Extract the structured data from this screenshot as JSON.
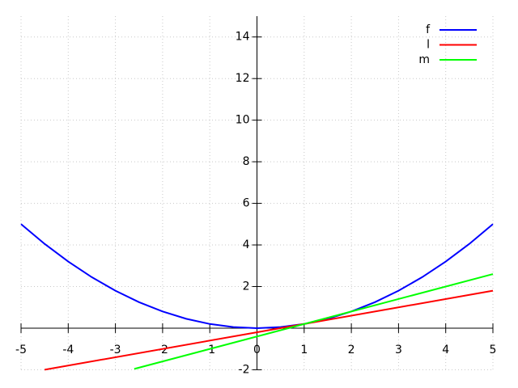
{
  "chart_data": {
    "type": "line",
    "xlim": [
      -5,
      5
    ],
    "ylim": [
      -2,
      15
    ],
    "xticks": [
      -5,
      -4,
      -3,
      -2,
      -1,
      0,
      1,
      2,
      3,
      4,
      5
    ],
    "yticks": [
      -2,
      2,
      4,
      6,
      8,
      10,
      12,
      14
    ],
    "grid": true,
    "legend": "top-right",
    "series": [
      {
        "name": "f",
        "color": "#0000ff",
        "x": [
          -5,
          -4.5,
          -4,
          -3.5,
          -3,
          -2.5,
          -2,
          -1.5,
          -1,
          -0.5,
          0,
          0.5,
          1,
          1.5,
          2,
          2.5,
          3,
          3.5,
          4,
          4.5,
          5
        ],
        "values": [
          5,
          4.05,
          3.2,
          2.45,
          1.8,
          1.25,
          0.8,
          0.45,
          0.2,
          0.05,
          0,
          0.05,
          0.2,
          0.45,
          0.8,
          1.25,
          1.8,
          2.45,
          3.2,
          4.05,
          5
        ]
      },
      {
        "name": "l",
        "color": "#ff0000",
        "x": [
          -4.5,
          5
        ],
        "values": [
          -2,
          1.8
        ]
      },
      {
        "name": "m",
        "color": "#00ff00",
        "x": [
          -2.6,
          5
        ],
        "values": [
          -1.96,
          2.6
        ]
      }
    ]
  }
}
